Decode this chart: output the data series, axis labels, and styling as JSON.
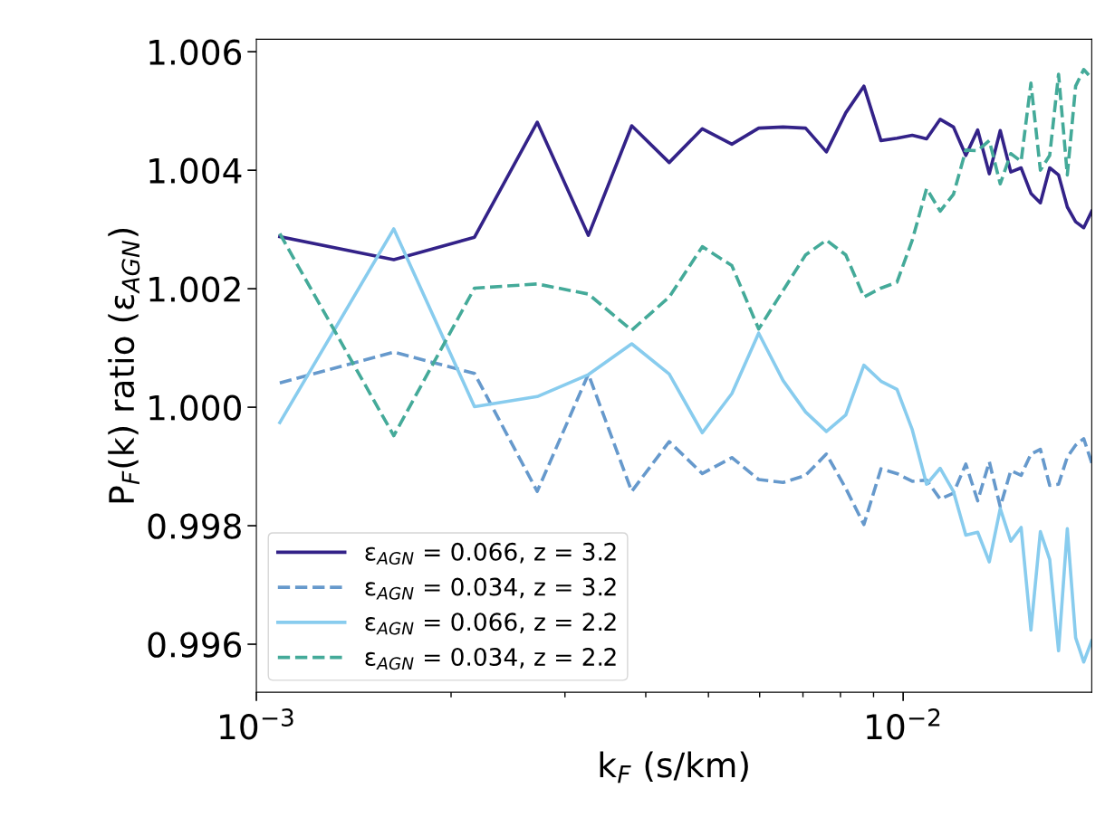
{
  "chart_data": {
    "type": "line",
    "xlabel": "k$_{F}$ (s/km)",
    "ylabel": "P$_{F}$(k) ratio (ε$_{AGN}$)",
    "log": "x",
    "x": [
      0.001087,
      0.001631,
      0.002174,
      0.002718,
      0.003261,
      0.003805,
      0.004348,
      0.004892,
      0.005435,
      0.005979,
      0.006522,
      0.007066,
      0.007609,
      0.008153,
      0.008696,
      0.00924,
      0.009783,
      0.01033,
      0.01087,
      0.01141,
      0.01196,
      0.0125,
      0.01304,
      0.01359,
      0.01413,
      0.01467,
      0.01522,
      0.01576,
      0.0163,
      0.01685,
      0.01739,
      0.01794,
      0.01848,
      0.01902,
      0.01957
    ],
    "series": [
      {
        "name": "ε$_{AGN}$ = 0.066, z = 3.2",
        "color": "#332288",
        "line_style": "solid",
        "values": [
          1.00288,
          1.00249,
          1.00287,
          1.00481,
          1.0029,
          1.00475,
          1.00413,
          1.0047,
          1.00444,
          1.00471,
          1.00473,
          1.00471,
          1.00431,
          1.00497,
          1.00542,
          1.0045,
          1.00454,
          1.00459,
          1.00453,
          1.00486,
          1.00473,
          1.00425,
          1.00468,
          1.00394,
          1.00467,
          1.00397,
          1.00404,
          1.00361,
          1.00345,
          1.00404,
          1.00392,
          1.00338,
          1.00313,
          1.00303,
          1.00331
        ]
      },
      {
        "name": "ε$_{AGN}$ = 0.034, z = 3.2",
        "color": "#6699cc",
        "line_style": "dashed",
        "values": [
          1.00041,
          1.00093,
          1.00057,
          0.99858,
          1.00056,
          0.99858,
          0.99942,
          0.99888,
          0.99915,
          0.99878,
          0.99873,
          0.99885,
          0.99921,
          0.99863,
          0.99802,
          0.99896,
          0.99888,
          0.99875,
          0.99877,
          0.99845,
          0.99855,
          0.99904,
          0.99842,
          0.99908,
          0.99832,
          0.99893,
          0.99885,
          0.99921,
          0.99929,
          0.99868,
          0.9987,
          0.99916,
          0.99936,
          0.99947,
          0.99906
        ]
      },
      {
        "name": "ε$_{AGN}$ = 0.066, z = 2.2",
        "color": "#88ccee",
        "line_style": "solid",
        "values": [
          0.99974,
          1.00301,
          1.00001,
          1.00018,
          1.00055,
          1.00107,
          1.00056,
          0.99957,
          1.00023,
          1.00125,
          1.00045,
          0.99992,
          0.99959,
          0.99987,
          1.00071,
          1.00044,
          1.0003,
          0.99962,
          0.9987,
          0.99897,
          0.99858,
          0.99784,
          0.99789,
          0.99739,
          0.99829,
          0.99774,
          0.99797,
          0.99624,
          0.9979,
          0.99743,
          0.99589,
          0.99795,
          0.99611,
          0.9957,
          0.99606
        ]
      },
      {
        "name": "ε$_{AGN}$ = 0.034, z = 2.2",
        "color": "#44aa99",
        "line_style": "dashed",
        "values": [
          1.00293,
          0.99952,
          1.00201,
          1.00208,
          1.00191,
          1.0013,
          1.00186,
          1.00271,
          1.00239,
          1.00132,
          1.00197,
          1.00257,
          1.00282,
          1.00257,
          1.00186,
          1.00201,
          1.00211,
          1.00282,
          1.00369,
          1.00331,
          1.00359,
          1.00434,
          1.00433,
          1.0045,
          1.00377,
          1.00428,
          1.00415,
          1.00547,
          1.004,
          1.00425,
          1.00562,
          1.00392,
          1.00542,
          1.0057,
          1.00555
        ]
      }
    ],
    "xlim": [
      0.001,
      0.01957
    ],
    "xticks": [
      {
        "value": 0.001,
        "label": "10$^{−3}$"
      },
      {
        "value": 0.002,
        "label": null
      },
      {
        "value": 0.003,
        "label": null
      },
      {
        "value": 0.004,
        "label": null
      },
      {
        "value": 0.005,
        "label": null
      },
      {
        "value": 0.006,
        "label": null
      },
      {
        "value": 0.007,
        "label": null
      },
      {
        "value": 0.008,
        "label": null
      },
      {
        "value": 0.009,
        "label": null
      },
      {
        "value": 0.01,
        "label": "10$^{−2}$"
      }
    ],
    "ylim": [
      0.99519,
      1.00621
    ],
    "yticks": [
      {
        "value": 0.996,
        "label": "0.996"
      },
      {
        "value": 0.998,
        "label": "0.998"
      },
      {
        "value": 1.0,
        "label": "1.000"
      },
      {
        "value": 1.002,
        "label": "1.002"
      },
      {
        "value": 1.004,
        "label": "1.004"
      },
      {
        "value": 1.006,
        "label": "1.006"
      }
    ],
    "legend": "bottom left",
    "grid": false
  }
}
